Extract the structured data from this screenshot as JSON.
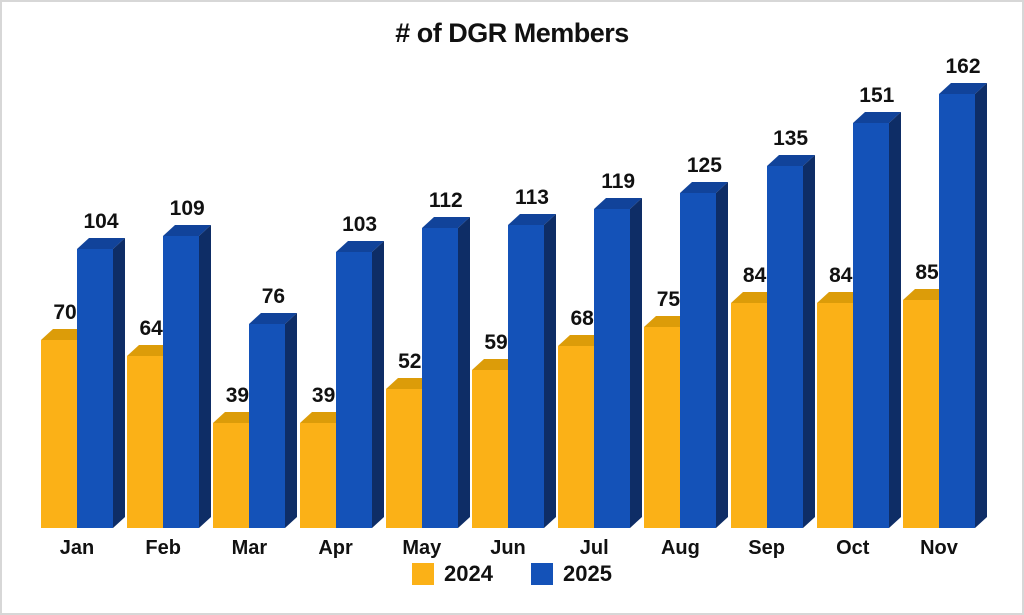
{
  "chart_data": {
    "type": "bar",
    "title": "# of DGR Members",
    "categories": [
      "Jan",
      "Feb",
      "Mar",
      "Apr",
      "May",
      "Jun",
      "Jul",
      "Aug",
      "Sep",
      "Oct",
      "Nov"
    ],
    "series": [
      {
        "name": "2024",
        "values": [
          70,
          64,
          39,
          39,
          52,
          59,
          68,
          75,
          84,
          84,
          85
        ],
        "color": "#FBB117",
        "top_color": "#DC9C09",
        "side_color": "#C8860A"
      },
      {
        "name": "2025",
        "values": [
          104,
          109,
          76,
          103,
          112,
          113,
          119,
          125,
          135,
          151,
          162
        ],
        "color": "#1452B8",
        "top_color": "#11439A",
        "side_color": "#0E2D66"
      }
    ],
    "xlabel": "",
    "ylabel": "",
    "ylim": [
      0,
      170
    ],
    "grid": false,
    "axes_visible": false,
    "bar_style": "3d",
    "data_labels": true,
    "legend_position": "bottom"
  },
  "legend": {
    "items": [
      {
        "label": "2024",
        "color": "#FBB117"
      },
      {
        "label": "2025",
        "color": "#1452B8"
      }
    ]
  }
}
